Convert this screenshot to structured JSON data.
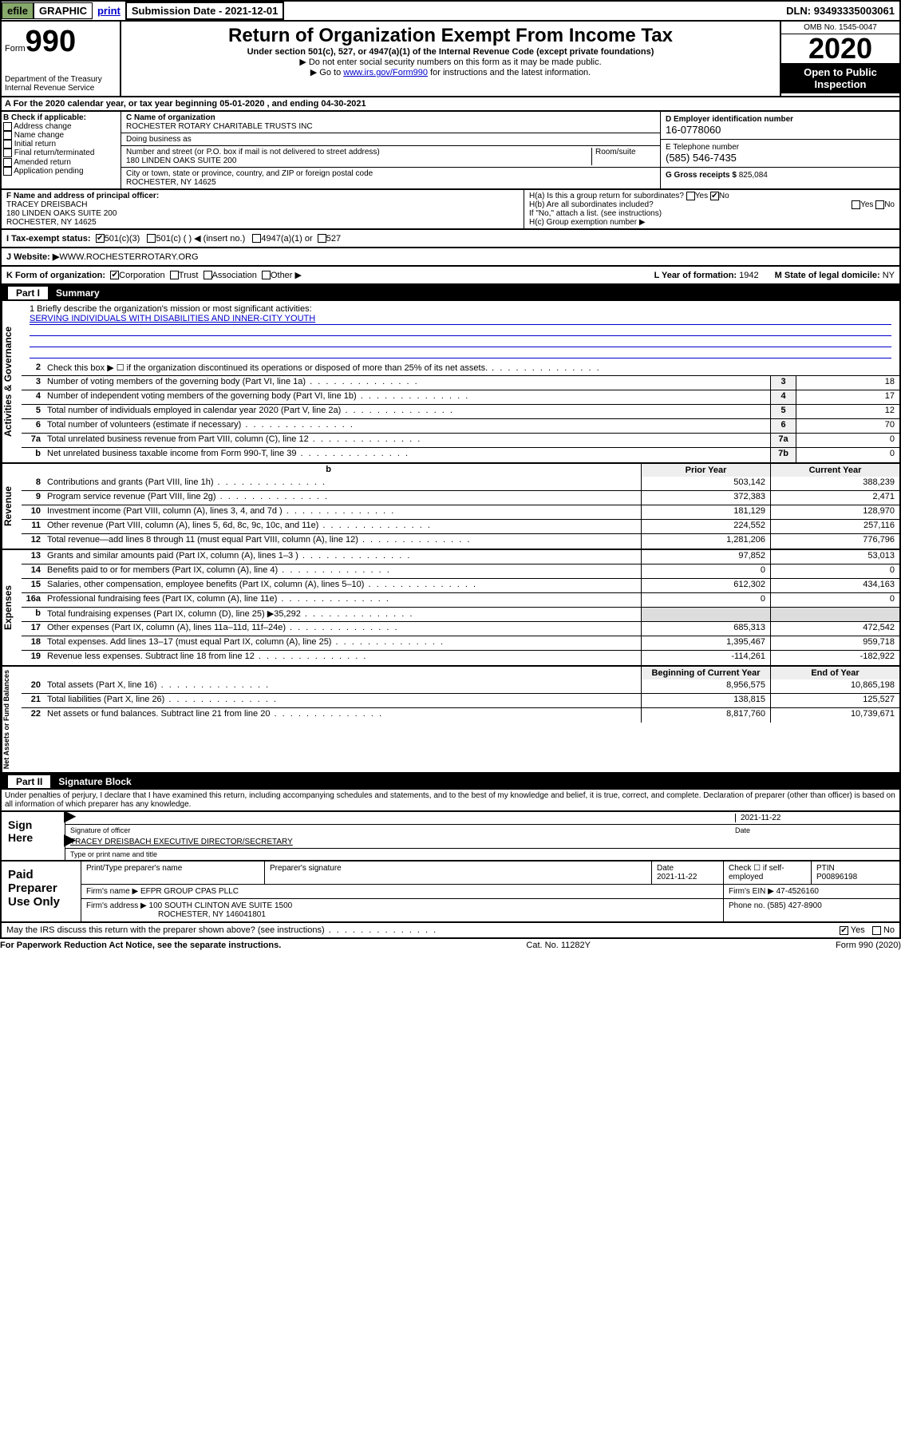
{
  "topbar": {
    "efile": "efile",
    "graphic": "GRAPHIC",
    "print": "print",
    "submission_label": "Submission Date - ",
    "submission_date": "2021-12-01",
    "dln_label": "DLN: ",
    "dln": "93493335003061"
  },
  "header": {
    "form_word": "Form",
    "form_num": "990",
    "title": "Return of Organization Exempt From Income Tax",
    "subtitle": "Under section 501(c), 527, or 4947(a)(1) of the Internal Revenue Code (except private foundations)",
    "note1": "▶ Do not enter social security numbers on this form as it may be made public.",
    "note2_pre": "▶ Go to ",
    "note2_link": "www.irs.gov/Form990",
    "note2_post": " for instructions and the latest information.",
    "omb": "OMB No. 1545-0047",
    "year": "2020",
    "open_pub": "Open to Public Inspection",
    "dept": "Department of the Treasury",
    "irs": "Internal Revenue Service"
  },
  "period": {
    "prefix": "A For the 2020 calendar year, or tax year beginning ",
    "begin": "05-01-2020",
    "mid": " , and ending ",
    "end": "04-30-2021"
  },
  "boxB": {
    "label": "B Check if applicable:",
    "items": [
      "Address change",
      "Name change",
      "Initial return",
      "Final return/terminated",
      "Amended return",
      "Application pending"
    ]
  },
  "boxC": {
    "name_label": "C Name of organization",
    "name": "ROCHESTER ROTARY CHARITABLE TRUSTS INC",
    "dba_label": "Doing business as",
    "dba": "",
    "addr_label": "Number and street (or P.O. box if mail is not delivered to street address)",
    "room_label": "Room/suite",
    "addr": "180 LINDEN OAKS SUITE 200",
    "city_label": "City or town, state or province, country, and ZIP or foreign postal code",
    "city": "ROCHESTER, NY  14625"
  },
  "boxD": {
    "label": "D Employer identification number",
    "val": "16-0778060"
  },
  "boxE": {
    "label": "E Telephone number",
    "val": "(585) 546-7435"
  },
  "boxG": {
    "label": "G Gross receipts $ ",
    "val": "825,084"
  },
  "boxF": {
    "label": "F  Name and address of principal officer:",
    "name": "TRACEY DREISBACH",
    "addr1": "180 LINDEN OAKS SUITE 200",
    "addr2": "ROCHESTER, NY  14625"
  },
  "boxH": {
    "a": "H(a)  Is this a group return for subordinates?",
    "b": "H(b)  Are all subordinates included?",
    "note": "If \"No,\" attach a list. (see instructions)",
    "c": "H(c)  Group exemption number ▶"
  },
  "boxI": {
    "label": "I    Tax-exempt status:",
    "opts": [
      "501(c)(3)",
      "501(c) (  ) ◀ (insert no.)",
      "4947(a)(1) or",
      "527"
    ]
  },
  "boxJ": {
    "label": "J    Website: ▶ ",
    "val": "WWW.ROCHESTERROTARY.ORG"
  },
  "boxK": {
    "label": "K Form of organization:",
    "opts": [
      "Corporation",
      "Trust",
      "Association",
      "Other ▶"
    ]
  },
  "boxL": {
    "label": "L Year of formation: ",
    "val": "1942"
  },
  "boxM": {
    "label": "M State of legal domicile: ",
    "val": "NY"
  },
  "part1": {
    "roman": "Part I",
    "title": "Summary"
  },
  "mission": {
    "label": "1  Briefly describe the organization's mission or most significant activities:",
    "text": "SERVING INDIVIDUALS WITH DISABILITIES AND INNER-CITY YOUTH"
  },
  "gov_lines": [
    {
      "no": "2",
      "txt": "Check this box ▶ ☐  if the organization discontinued its operations or disposed of more than 25% of its net assets.",
      "box": "",
      "val": ""
    },
    {
      "no": "3",
      "txt": "Number of voting members of the governing body (Part VI, line 1a)",
      "box": "3",
      "val": "18"
    },
    {
      "no": "4",
      "txt": "Number of independent voting members of the governing body (Part VI, line 1b)",
      "box": "4",
      "val": "17"
    },
    {
      "no": "5",
      "txt": "Total number of individuals employed in calendar year 2020 (Part V, line 2a)",
      "box": "5",
      "val": "12"
    },
    {
      "no": "6",
      "txt": "Total number of volunteers (estimate if necessary)",
      "box": "6",
      "val": "70"
    },
    {
      "no": "7a",
      "txt": "Total unrelated business revenue from Part VIII, column (C), line 12",
      "box": "7a",
      "val": "0"
    },
    {
      "no": "b",
      "txt": "Net unrelated business taxable income from Form 990-T, line 39",
      "box": "7b",
      "val": "0"
    }
  ],
  "col_hdrs": {
    "prior": "Prior Year",
    "current": "Current Year"
  },
  "rev_lines": [
    {
      "no": "8",
      "txt": "Contributions and grants (Part VIII, line 1h)",
      "p": "503,142",
      "c": "388,239"
    },
    {
      "no": "9",
      "txt": "Program service revenue (Part VIII, line 2g)",
      "p": "372,383",
      "c": "2,471"
    },
    {
      "no": "10",
      "txt": "Investment income (Part VIII, column (A), lines 3, 4, and 7d )",
      "p": "181,129",
      "c": "128,970"
    },
    {
      "no": "11",
      "txt": "Other revenue (Part VIII, column (A), lines 5, 6d, 8c, 9c, 10c, and 11e)",
      "p": "224,552",
      "c": "257,116"
    },
    {
      "no": "12",
      "txt": "Total revenue—add lines 8 through 11 (must equal Part VIII, column (A), line 12)",
      "p": "1,281,206",
      "c": "776,796"
    }
  ],
  "exp_lines": [
    {
      "no": "13",
      "txt": "Grants and similar amounts paid (Part IX, column (A), lines 1–3 )",
      "p": "97,852",
      "c": "53,013"
    },
    {
      "no": "14",
      "txt": "Benefits paid to or for members (Part IX, column (A), line 4)",
      "p": "0",
      "c": "0"
    },
    {
      "no": "15",
      "txt": "Salaries, other compensation, employee benefits (Part IX, column (A), lines 5–10)",
      "p": "612,302",
      "c": "434,163"
    },
    {
      "no": "16a",
      "txt": "Professional fundraising fees (Part IX, column (A), line 11e)",
      "p": "0",
      "c": "0"
    },
    {
      "no": "b",
      "txt": "Total fundraising expenses (Part IX, column (D), line 25) ▶35,292",
      "p": "",
      "c": "",
      "gray": true
    },
    {
      "no": "17",
      "txt": "Other expenses (Part IX, column (A), lines 11a–11d, 11f–24e)",
      "p": "685,313",
      "c": "472,542"
    },
    {
      "no": "18",
      "txt": "Total expenses. Add lines 13–17 (must equal Part IX, column (A), line 25)",
      "p": "1,395,467",
      "c": "959,718"
    },
    {
      "no": "19",
      "txt": "Revenue less expenses. Subtract line 18 from line 12",
      "p": "-114,261",
      "c": "-182,922"
    }
  ],
  "bal_hdrs": {
    "beg": "Beginning of Current Year",
    "end": "End of Year"
  },
  "bal_lines": [
    {
      "no": "20",
      "txt": "Total assets (Part X, line 16)",
      "p": "8,956,575",
      "c": "10,865,198"
    },
    {
      "no": "21",
      "txt": "Total liabilities (Part X, line 26)",
      "p": "138,815",
      "c": "125,527"
    },
    {
      "no": "22",
      "txt": "Net assets or fund balances. Subtract line 21 from line 20",
      "p": "8,817,760",
      "c": "10,739,671"
    }
  ],
  "part2": {
    "roman": "Part II",
    "title": "Signature Block"
  },
  "declare": "Under penalties of perjury, I declare that I have examined this return, including accompanying schedules and statements, and to the best of my knowledge and belief, it is true, correct, and complete. Declaration of preparer (other than officer) is based on all information of which preparer has any knowledge.",
  "sign": {
    "here": "Sign Here",
    "sig_label": "Signature of officer",
    "date": "2021-11-22",
    "date_label": "Date",
    "name": "TRACEY DREISBACH  EXECUTIVE DIRECTOR/SECRETARY",
    "name_label": "Type or print name and title"
  },
  "paid": {
    "label": "Paid Preparer Use Only",
    "h1": "Print/Type preparer's name",
    "h2": "Preparer's signature",
    "h3": "Date",
    "date": "2021-11-22",
    "h4_label": "Check ☐ if self-employed",
    "h5": "PTIN",
    "ptin": "P00896198",
    "firm_name_label": "Firm's name      ▶ ",
    "firm_name": "EFPR GROUP CPAS PLLC",
    "firm_ein_label": "Firm's EIN ▶ ",
    "firm_ein": "47-4526160",
    "firm_addr_label": "Firm's address ▶ ",
    "firm_addr": "100 SOUTH CLINTON AVE SUITE 1500",
    "firm_city": "ROCHESTER, NY  146041801",
    "phone_label": "Phone no. ",
    "phone": "(585) 427-8900"
  },
  "discuss": {
    "txt": "May the IRS discuss this return with the preparer shown above? (see instructions)",
    "yes": "Yes",
    "no": "No"
  },
  "footer": {
    "l": "For Paperwork Reduction Act Notice, see the separate instructions.",
    "c": "Cat. No. 11282Y",
    "r": "Form 990 (2020)"
  },
  "vlabels": {
    "gov": "Activities & Governance",
    "rev": "Revenue",
    "exp": "Expenses",
    "bal": "Net Assets or Fund Balances"
  }
}
